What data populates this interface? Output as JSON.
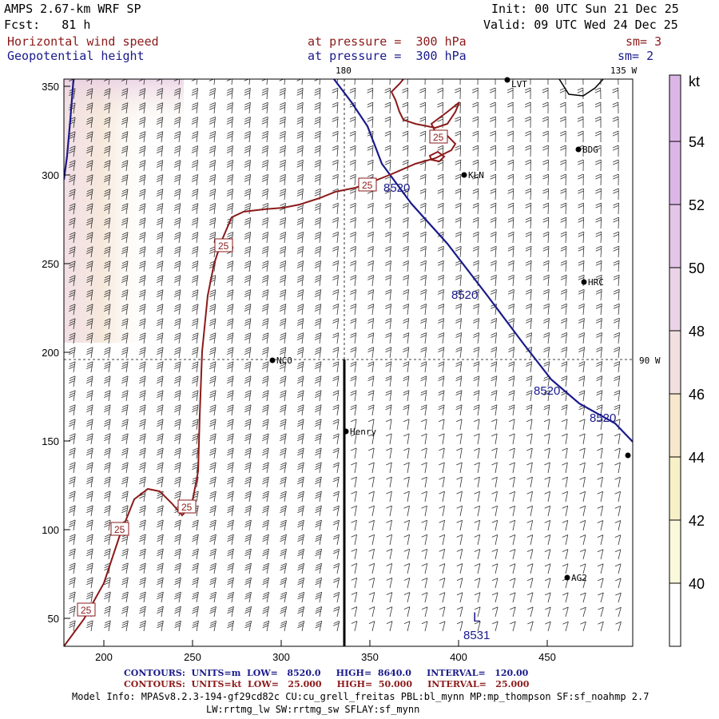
{
  "header": {
    "title": "AMPS 2.67-km WRF SP",
    "fcst": "Fcst:   81 h",
    "init": "Init: 00 UTC Sun 21 Dec 25",
    "valid": "Valid: 09 UTC Wed 24 Dec 25",
    "field1": "Horizontal wind speed",
    "field2": "Geopotential height",
    "pressure1": "at pressure =  300 hPa",
    "pressure2": "at pressure =  300 hPa",
    "sm1": "sm= 3",
    "sm2": "sm= 2"
  },
  "map": {
    "lon_labels": {
      "top": "180",
      "top_right": "135 W",
      "right": "90 W"
    },
    "x_ticks": [
      "200",
      "250",
      "300",
      "350",
      "400",
      "450"
    ],
    "y_ticks": [
      "50",
      "100",
      "150",
      "200",
      "250",
      "300",
      "350"
    ],
    "stations": [
      {
        "name": "NCO"
      },
      {
        "name": "Henry"
      },
      {
        "name": "KLN"
      },
      {
        "name": "BDG"
      },
      {
        "name": "HRC"
      },
      {
        "name": "AG2"
      },
      {
        "name": "LVT"
      }
    ],
    "height_labels": [
      "8520",
      "8520",
      "8520",
      "8520"
    ],
    "low_label": "L",
    "low_value": "8531",
    "speed_labels": [
      "25",
      "25",
      "25",
      "25",
      "25",
      "25"
    ],
    "colors": {
      "height_contour": "#1a1a8b",
      "speed_contour": "#8b1a1a"
    }
  },
  "colorbar": {
    "unit": "kt",
    "labels": [
      "54",
      "52",
      "50",
      "48",
      "46",
      "44",
      "42",
      "40"
    ],
    "colors": [
      "#ffffff",
      "#fbf9dc",
      "#f8f1c8",
      "#f7e7cc",
      "#f2dfe0",
      "#ead3e6",
      "#e4c6e8",
      "#ddb6e8"
    ]
  },
  "footer": {
    "contours_height": "CONTOURS:  UNITS=m  LOW=   8520.0     HIGH=  8640.0     INTERVAL=   120.00",
    "contours_speed": "CONTOURS:  UNITS=kt  LOW=   25.000     HIGH=  50.000     INTERVAL=   25.000",
    "model_info_1": "Model Info: MPASv8.2.3-194-gf29cd82c CU:cu_grell_freitas PBL:bl_mynn MP:mp_thompson SF:sf_noahmp 2.7",
    "model_info_2": "LW:rrtmg_lw SW:rrtmg_sw SFLAY:sf_mynn"
  }
}
